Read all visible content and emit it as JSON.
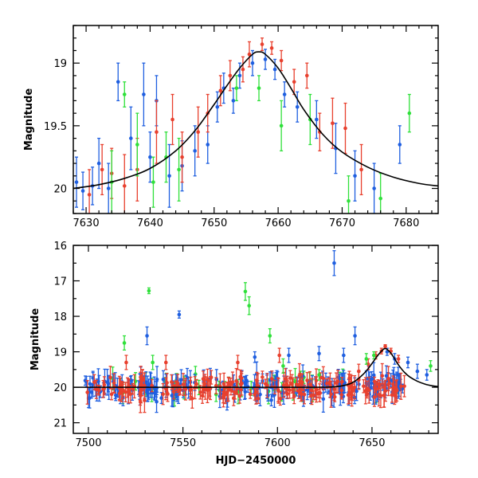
{
  "chart_data": [
    {
      "type": "scatter",
      "panel": "top",
      "ylabel": "Magnitude",
      "xlabel": "",
      "xlim": [
        7628,
        7685
      ],
      "ylim": [
        20.2,
        18.7
      ],
      "y_inverted": true,
      "xticks": [
        7630,
        7640,
        7650,
        7660,
        7670,
        7680
      ],
      "xtick_labels": [
        "7630",
        "7640",
        "7650",
        "7660",
        "7670",
        "7680"
      ],
      "yticks": [
        19,
        19.5,
        20
      ],
      "ytick_labels": [
        "19",
        "19.5",
        "20"
      ],
      "curve": {
        "name": "",
        "color": "#000000",
        "x": [
          7628,
          7632,
          7636,
          7640,
          7644,
          7647,
          7650,
          7652,
          7654,
          7656,
          7657,
          7658,
          7660,
          7662,
          7664,
          7667,
          7670,
          7674,
          7678,
          7682,
          7685
        ],
        "y": [
          20.0,
          19.97,
          19.92,
          19.84,
          19.7,
          19.54,
          19.33,
          19.18,
          19.04,
          18.93,
          18.91,
          18.93,
          19.04,
          19.2,
          19.37,
          19.57,
          19.71,
          19.83,
          19.91,
          19.96,
          19.98
        ]
      },
      "series": [
        {
          "name": "",
          "color": "#1f5fe0",
          "x": [
            7628.5,
            7629.5,
            7631,
            7632,
            7633.5,
            7635,
            7637,
            7639,
            7640,
            7641,
            7643,
            7645,
            7647,
            7649,
            7650.5,
            7651.5,
            7653,
            7654,
            7656,
            7658,
            7659.5,
            7661,
            7663,
            7666,
            7669,
            7672,
            7675,
            7679
          ],
          "y": [
            19.95,
            20.02,
            19.98,
            19.8,
            20.0,
            19.15,
            19.6,
            19.25,
            19.75,
            19.3,
            19.9,
            19.82,
            19.7,
            19.65,
            19.35,
            19.2,
            19.3,
            19.1,
            19.0,
            18.97,
            19.05,
            19.25,
            19.35,
            19.45,
            19.68,
            19.9,
            20.0,
            19.65
          ],
          "err": [
            0.2,
            0.15,
            0.15,
            0.2,
            0.2,
            0.15,
            0.25,
            0.25,
            0.2,
            0.2,
            0.25,
            0.2,
            0.2,
            0.15,
            0.12,
            0.12,
            0.1,
            0.1,
            0.1,
            0.08,
            0.08,
            0.1,
            0.12,
            0.15,
            0.2,
            0.2,
            0.2,
            0.15
          ]
        },
        {
          "name": "",
          "color": "#e8402e",
          "x": [
            7630.5,
            7632.5,
            7634,
            7636,
            7638,
            7641,
            7643.5,
            7645,
            7647.5,
            7649,
            7651,
            7652.5,
            7654.5,
            7655.5,
            7657.5,
            7659,
            7660.5,
            7662.5,
            7664.5,
            7666.5,
            7668.5,
            7670.5,
            7673
          ],
          "y": [
            20.05,
            19.85,
            19.88,
            19.98,
            19.85,
            19.55,
            19.45,
            19.75,
            19.55,
            19.4,
            19.22,
            19.1,
            19.05,
            18.93,
            18.85,
            18.88,
            18.98,
            19.15,
            19.1,
            19.55,
            19.48,
            19.52,
            19.85
          ],
          "err": [
            0.2,
            0.2,
            0.2,
            0.25,
            0.25,
            0.25,
            0.2,
            0.2,
            0.2,
            0.15,
            0.12,
            0.12,
            0.1,
            0.1,
            0.05,
            0.05,
            0.08,
            0.1,
            0.1,
            0.15,
            0.2,
            0.2,
            0.2
          ]
        },
        {
          "name": "",
          "color": "#2fe03a",
          "x": [
            7634,
            7636,
            7638,
            7640.5,
            7642.5,
            7644.5,
            7653.5,
            7657,
            7660.5,
            7665,
            7671,
            7676,
            7680.5
          ],
          "y": [
            19.95,
            19.25,
            19.65,
            19.95,
            19.75,
            19.85,
            19.2,
            19.2,
            19.5,
            19.45,
            20.1,
            20.08,
            19.4
          ],
          "err": [
            0.25,
            0.1,
            0.25,
            0.2,
            0.2,
            0.25,
            0.1,
            0.1,
            0.2,
            0.2,
            0.2,
            0.2,
            0.15
          ]
        }
      ]
    },
    {
      "type": "scatter",
      "panel": "bottom",
      "ylabel": "Magnitude",
      "xlabel": "HJD−2450000",
      "xlim": [
        7492,
        7685
      ],
      "ylim": [
        21.3,
        16.0
      ],
      "y_inverted": true,
      "xticks": [
        7500,
        7550,
        7600,
        7650
      ],
      "xtick_labels": [
        "7500",
        "7550",
        "7600",
        "7650"
      ],
      "yticks": [
        16,
        17,
        18,
        19,
        20,
        21
      ],
      "ytick_labels": [
        "16",
        "17",
        "18",
        "19",
        "20",
        "21"
      ],
      "curve": {
        "name": "",
        "color": "#000000",
        "x": [
          7492,
          7520,
          7560,
          7600,
          7620,
          7630,
          7636,
          7640,
          7644,
          7647,
          7650,
          7652,
          7654,
          7656,
          7657,
          7658,
          7660,
          7662,
          7664,
          7667,
          7670,
          7674,
          7678,
          7682,
          7685
        ],
        "y": [
          20.0,
          20.0,
          20.0,
          20.0,
          20.0,
          19.99,
          19.94,
          19.86,
          19.7,
          19.54,
          19.33,
          19.18,
          19.04,
          18.93,
          18.91,
          18.93,
          19.04,
          19.2,
          19.37,
          19.57,
          19.71,
          19.83,
          19.91,
          19.96,
          19.98
        ]
      },
      "scatter_noise": {
        "baseline": 20.0,
        "spread": 0.28,
        "x_range": [
          7498,
          7668
        ],
        "counts": {
          "blue": 200,
          "red": 200,
          "green": 40
        }
      },
      "series": [
        {
          "name": "",
          "color": "#1f5fe0",
          "x": [
            7531,
            7548,
            7588,
            7606,
            7622,
            7630,
            7635,
            7641,
            7658,
            7662,
            7669,
            7674,
            7679
          ],
          "y": [
            18.55,
            17.95,
            19.15,
            19.1,
            19.05,
            16.5,
            19.1,
            18.55,
            19.0,
            19.2,
            19.3,
            19.55,
            19.65
          ],
          "err": [
            0.25,
            0.1,
            0.15,
            0.2,
            0.2,
            0.35,
            0.2,
            0.25,
            0.1,
            0.15,
            0.15,
            0.2,
            0.15
          ]
        },
        {
          "name": "",
          "color": "#e8402e",
          "x": [
            7520,
            7541,
            7579,
            7601,
            7638,
            7643,
            7648,
            7652,
            7655,
            7657,
            7660,
            7664
          ],
          "y": [
            19.3,
            19.3,
            19.3,
            19.1,
            19.75,
            19.55,
            19.35,
            19.1,
            18.98,
            18.85,
            18.98,
            19.2
          ],
          "err": [
            0.2,
            0.2,
            0.2,
            0.2,
            0.2,
            0.2,
            0.15,
            0.1,
            0.08,
            0.05,
            0.08,
            0.1
          ]
        },
        {
          "name": "",
          "color": "#2fe03a",
          "x": [
            7519,
            7532,
            7534,
            7583,
            7585,
            7596,
            7603,
            7622,
            7647,
            7651,
            7681
          ],
          "y": [
            18.75,
            17.28,
            19.3,
            17.3,
            17.7,
            18.55,
            19.4,
            19.65,
            19.2,
            19.1,
            19.4
          ],
          "err": [
            0.2,
            0.08,
            0.2,
            0.25,
            0.25,
            0.2,
            0.2,
            0.15,
            0.15,
            0.1,
            0.15
          ]
        }
      ]
    }
  ]
}
